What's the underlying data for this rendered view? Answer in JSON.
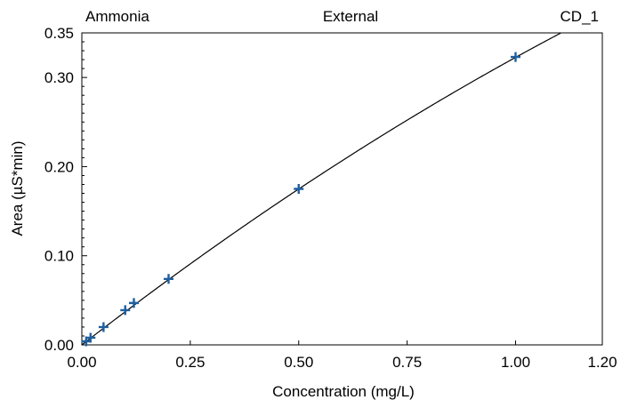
{
  "chart_data": {
    "type": "scatter",
    "header": {
      "left": "Ammonia",
      "center": "External",
      "right": "CD_1"
    },
    "xlabel": "Concentration (mg/L)",
    "ylabel": "Area (µS*min)",
    "xlim": [
      0,
      1.2
    ],
    "ylim": [
      0,
      0.35
    ],
    "x_ticks": [
      0.0,
      0.25,
      0.5,
      0.75,
      1.0,
      1.2
    ],
    "x_tick_labels": [
      "0.00",
      "0.25",
      "0.50",
      "0.75",
      "1.00",
      "1.20"
    ],
    "y_ticks": [
      0.0,
      0.1,
      0.2,
      0.3,
      0.35
    ],
    "y_tick_labels": [
      "0.00",
      "0.10",
      "0.20",
      "0.30",
      "0.35"
    ],
    "grid": false,
    "colors": {
      "points": "#1f5f9f",
      "curve": "#000000",
      "frame": "#000000"
    },
    "series": [
      {
        "marker": "plus",
        "points": [
          {
            "x": 0.01,
            "y": 0.004
          },
          {
            "x": 0.02,
            "y": 0.008
          },
          {
            "x": 0.05,
            "y": 0.02
          },
          {
            "x": 0.1,
            "y": 0.039
          },
          {
            "x": 0.12,
            "y": 0.047
          },
          {
            "x": 0.2,
            "y": 0.074
          },
          {
            "x": 0.5,
            "y": 0.175
          },
          {
            "x": 1.0,
            "y": 0.323
          }
        ]
      }
    ],
    "fit_curve": {
      "type": "quadratic",
      "coefficients": {
        "a": -0.0545,
        "b": 0.377,
        "c": 0.0
      }
    }
  }
}
